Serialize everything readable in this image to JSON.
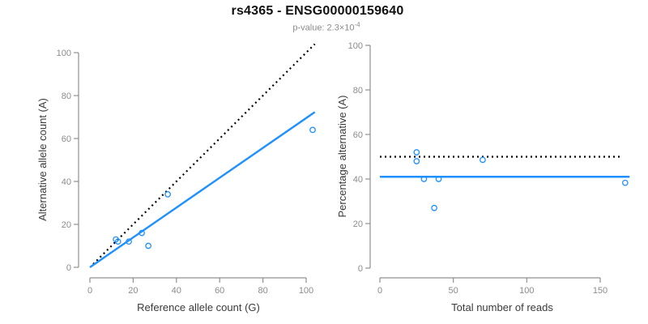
{
  "header": {
    "title": "rs4365 - ENSG00000159640",
    "pvalue_prefix": "p-value: 2.3×10",
    "pvalue_exponent": "-4"
  },
  "colors": {
    "accent_blue": "#1E90FF",
    "identity_black": "#000000",
    "axis_gray": "#909090",
    "tick_label_gray": "#8c8c8c",
    "axis_title_gray": "#3a3a3a",
    "title_color": "#111111",
    "subtitle_gray": "#8c8c8c",
    "background": "#ffffff"
  },
  "chart_data": [
    {
      "type": "scatter",
      "panel": "left",
      "xlabel": "Reference allele count (G)",
      "ylabel": "Alternative allele count (A)",
      "xlim": [
        0,
        104
      ],
      "ylim": [
        0,
        104
      ],
      "xticks": [
        0,
        20,
        40,
        60,
        80,
        100
      ],
      "yticks": [
        0,
        20,
        40,
        60,
        80,
        100
      ],
      "grid": false,
      "legend": "none",
      "marker": "open-circle",
      "point_color": "#1E90FF",
      "points": [
        [
          12,
          13
        ],
        [
          13,
          12
        ],
        [
          18,
          12
        ],
        [
          24,
          16
        ],
        [
          27,
          10
        ],
        [
          36,
          34
        ],
        [
          103,
          64
        ]
      ],
      "lines": [
        {
          "name": "identity-line",
          "style": "dotted",
          "color": "#000000",
          "from": [
            1.5,
            1.5
          ],
          "to": [
            104,
            104
          ]
        },
        {
          "name": "fit-line",
          "style": "solid",
          "color": "#1E90FF",
          "from": [
            0,
            0
          ],
          "to": [
            104,
            72.3
          ]
        }
      ]
    },
    {
      "type": "scatter",
      "panel": "right",
      "xlabel": "Total number of reads",
      "ylabel": "Percentage alternative (A)",
      "xlim": [
        0,
        170
      ],
      "ylim": [
        0,
        100
      ],
      "xticks": [
        0,
        50,
        100,
        150
      ],
      "yticks": [
        0,
        20,
        40,
        60,
        80,
        100
      ],
      "grid": false,
      "legend": "none",
      "marker": "open-circle",
      "point_color": "#1E90FF",
      "points": [
        [
          25,
          52
        ],
        [
          25,
          48
        ],
        [
          30,
          40
        ],
        [
          40,
          40
        ],
        [
          37,
          27
        ],
        [
          70,
          48.6
        ],
        [
          167,
          38.3
        ]
      ],
      "lines": [
        {
          "name": "null-line",
          "style": "dotted",
          "color": "#000000",
          "from": [
            0,
            50
          ],
          "to": [
            165,
            50
          ]
        },
        {
          "name": "fit-line",
          "style": "solid",
          "color": "#1E90FF",
          "from": [
            0,
            41
          ],
          "to": [
            170,
            41
          ]
        }
      ]
    }
  ]
}
